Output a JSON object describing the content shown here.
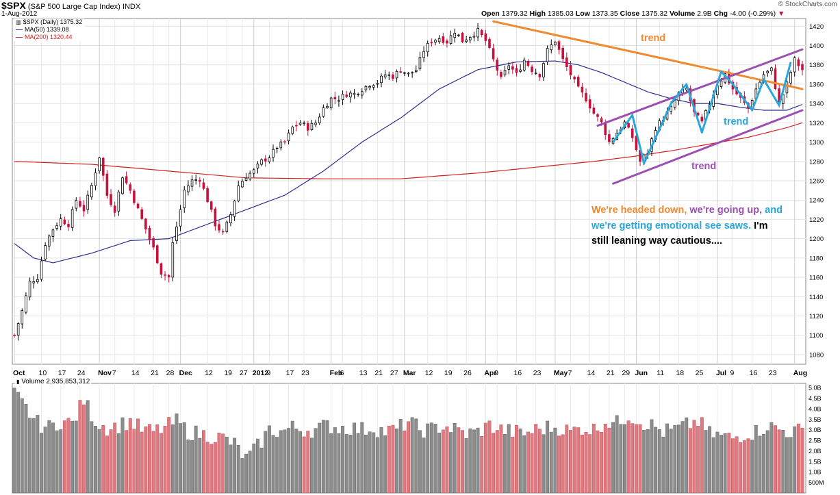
{
  "header": {
    "symbol": "$SPX",
    "name": "(S&P 500 Large Cap Index)",
    "exchange": "INDX",
    "date": "1-Aug-2012",
    "brand": "© StockCharts.com"
  },
  "ohlc": {
    "open_label": "Open",
    "open": "1379.32",
    "high_label": "High",
    "high": "1385.03",
    "low_label": "Low",
    "low": "1373.35",
    "close_label": "Close",
    "close": "1375.32",
    "volume_label": "Volume",
    "volume": "2.9B",
    "chg_label": "Chg",
    "chg": "-4.00 (-0.29%)"
  },
  "legend": {
    "price": "$SPX (Daily) 1375.32",
    "ma50": "MA(50) 1339.08",
    "ma200": "MA(200) 1320.44"
  },
  "volume_legend": "Volume 2,935,853,312",
  "annotation": {
    "part1": "We're headed down,",
    "part2": "we're going up,",
    "part3": "and we're getting emotional see saws.",
    "part4": "I'm still leaning way cautious...."
  },
  "colors": {
    "up": "#000000",
    "down": "#c8103c",
    "ma50": "#2a2f8c",
    "ma200": "#d42020",
    "trend_orange": "#f08a30",
    "trend_purple": "#9b4fb0",
    "trend_blue": "#29a6dc",
    "vol_up": "#8c8c8c",
    "vol_down": "#e07a80"
  },
  "chart_data": {
    "type": "candlestick",
    "title": "$SPX (S&P 500 Large Cap Index) INDX",
    "ylim": [
      1070,
      1428
    ],
    "price_ticks": [
      1080,
      1100,
      1120,
      1140,
      1160,
      1180,
      1200,
      1220,
      1240,
      1260,
      1280,
      1300,
      1320,
      1340,
      1360,
      1380,
      1400,
      1420
    ],
    "x_labels": [
      {
        "label": "Oct",
        "day": 0,
        "bold": true
      },
      {
        "label": "10",
        "day": 7
      },
      {
        "label": "17",
        "day": 12
      },
      {
        "label": "24",
        "day": 17
      },
      {
        "label": "Nov",
        "day": 22,
        "bold": true
      },
      {
        "label": "7",
        "day": 26
      },
      {
        "label": "14",
        "day": 31
      },
      {
        "label": "21",
        "day": 36
      },
      {
        "label": "28",
        "day": 40
      },
      {
        "label": "Dec",
        "day": 43,
        "bold": true
      },
      {
        "label": "12",
        "day": 50
      },
      {
        "label": "19",
        "day": 55
      },
      {
        "label": "27",
        "day": 59
      },
      {
        "label": "2012",
        "day": 62,
        "bold": true
      },
      {
        "label": "9",
        "day": 66
      },
      {
        "label": "17",
        "day": 71
      },
      {
        "label": "23",
        "day": 75
      },
      {
        "label": "Feb",
        "day": 82,
        "bold": true
      },
      {
        "label": "6",
        "day": 85
      },
      {
        "label": "13",
        "day": 90
      },
      {
        "label": "21",
        "day": 94
      },
      {
        "label": "27",
        "day": 98
      },
      {
        "label": "Mar",
        "day": 101,
        "bold": true
      },
      {
        "label": "12",
        "day": 107
      },
      {
        "label": "19",
        "day": 112
      },
      {
        "label": "26",
        "day": 117
      },
      {
        "label": "Apr",
        "day": 122,
        "bold": true
      },
      {
        "label": "9",
        "day": 125
      },
      {
        "label": "16",
        "day": 130
      },
      {
        "label": "23",
        "day": 135
      },
      {
        "label": "May",
        "day": 140,
        "bold": true
      },
      {
        "label": "7",
        "day": 144
      },
      {
        "label": "14",
        "day": 149
      },
      {
        "label": "21",
        "day": 154
      },
      {
        "label": "29",
        "day": 158
      },
      {
        "label": "Jun",
        "day": 161,
        "bold": true
      },
      {
        "label": "11",
        "day": 167
      },
      {
        "label": "18",
        "day": 172
      },
      {
        "label": "25",
        "day": 177
      },
      {
        "label": "Jul",
        "day": 182,
        "bold": true
      },
      {
        "label": "9",
        "day": 186
      },
      {
        "label": "16",
        "day": 191
      },
      {
        "label": "23",
        "day": 196
      },
      {
        "label": "Aug",
        "day": 202,
        "bold": true
      }
    ],
    "anchors": [
      [
        0,
        1100
      ],
      [
        2,
        1125
      ],
      [
        4,
        1155
      ],
      [
        6,
        1160
      ],
      [
        8,
        1195
      ],
      [
        10,
        1210
      ],
      [
        12,
        1220
      ],
      [
        14,
        1215
      ],
      [
        16,
        1240
      ],
      [
        18,
        1230
      ],
      [
        20,
        1255
      ],
      [
        22,
        1285
      ],
      [
        24,
        1245
      ],
      [
        26,
        1230
      ],
      [
        28,
        1265
      ],
      [
        30,
        1250
      ],
      [
        32,
        1230
      ],
      [
        34,
        1210
      ],
      [
        36,
        1190
      ],
      [
        38,
        1165
      ],
      [
        40,
        1160
      ],
      [
        41,
        1195
      ],
      [
        43,
        1230
      ],
      [
        44,
        1250
      ],
      [
        46,
        1260
      ],
      [
        48,
        1262
      ],
      [
        50,
        1240
      ],
      [
        52,
        1215
      ],
      [
        54,
        1205
      ],
      [
        56,
        1225
      ],
      [
        58,
        1255
      ],
      [
        60,
        1265
      ],
      [
        62,
        1270
      ],
      [
        64,
        1280
      ],
      [
        66,
        1285
      ],
      [
        68,
        1295
      ],
      [
        70,
        1300
      ],
      [
        72,
        1315
      ],
      [
        74,
        1320
      ],
      [
        76,
        1315
      ],
      [
        78,
        1320
      ],
      [
        80,
        1335
      ],
      [
        82,
        1345
      ],
      [
        84,
        1345
      ],
      [
        86,
        1350
      ],
      [
        88,
        1350
      ],
      [
        90,
        1355
      ],
      [
        92,
        1360
      ],
      [
        94,
        1362
      ],
      [
        96,
        1370
      ],
      [
        98,
        1368
      ],
      [
        100,
        1375
      ],
      [
        102,
        1370
      ],
      [
        104,
        1375
      ],
      [
        106,
        1395
      ],
      [
        108,
        1405
      ],
      [
        110,
        1408
      ],
      [
        112,
        1404
      ],
      [
        114,
        1415
      ],
      [
        116,
        1405
      ],
      [
        118,
        1410
      ],
      [
        120,
        1415
      ],
      [
        122,
        1405
      ],
      [
        124,
        1385
      ],
      [
        126,
        1365
      ],
      [
        128,
        1380
      ],
      [
        130,
        1370
      ],
      [
        132,
        1385
      ],
      [
        134,
        1375
      ],
      [
        136,
        1370
      ],
      [
        138,
        1395
      ],
      [
        140,
        1405
      ],
      [
        142,
        1385
      ],
      [
        144,
        1370
      ],
      [
        146,
        1355
      ],
      [
        148,
        1345
      ],
      [
        150,
        1330
      ],
      [
        152,
        1320
      ],
      [
        154,
        1300
      ],
      [
        156,
        1310
      ],
      [
        158,
        1320
      ],
      [
        160,
        1305
      ],
      [
        162,
        1280
      ],
      [
        164,
        1290
      ],
      [
        166,
        1315
      ],
      [
        168,
        1325
      ],
      [
        170,
        1335
      ],
      [
        172,
        1350
      ],
      [
        174,
        1355
      ],
      [
        176,
        1330
      ],
      [
        178,
        1320
      ],
      [
        180,
        1340
      ],
      [
        182,
        1360
      ],
      [
        184,
        1370
      ],
      [
        186,
        1355
      ],
      [
        188,
        1345
      ],
      [
        190,
        1335
      ],
      [
        192,
        1355
      ],
      [
        194,
        1370
      ],
      [
        196,
        1375
      ],
      [
        198,
        1340
      ],
      [
        200,
        1360
      ],
      [
        202,
        1385
      ],
      [
        204,
        1375
      ]
    ],
    "ma50_anchors": [
      [
        0,
        1195
      ],
      [
        5,
        1180
      ],
      [
        10,
        1175
      ],
      [
        20,
        1185
      ],
      [
        30,
        1198
      ],
      [
        40,
        1200
      ],
      [
        50,
        1215
      ],
      [
        60,
        1230
      ],
      [
        70,
        1245
      ],
      [
        80,
        1270
      ],
      [
        90,
        1300
      ],
      [
        100,
        1325
      ],
      [
        110,
        1355
      ],
      [
        120,
        1375
      ],
      [
        130,
        1383
      ],
      [
        140,
        1384
      ],
      [
        146,
        1380
      ],
      [
        152,
        1372
      ],
      [
        158,
        1362
      ],
      [
        164,
        1352
      ],
      [
        170,
        1345
      ],
      [
        176,
        1340
      ],
      [
        182,
        1340
      ],
      [
        188,
        1336
      ],
      [
        194,
        1333
      ],
      [
        200,
        1333
      ],
      [
        204,
        1339
      ]
    ],
    "ma200_anchors": [
      [
        0,
        1280
      ],
      [
        20,
        1277
      ],
      [
        40,
        1270
      ],
      [
        60,
        1263
      ],
      [
        80,
        1262
      ],
      [
        100,
        1262
      ],
      [
        120,
        1268
      ],
      [
        140,
        1276
      ],
      [
        150,
        1280
      ],
      [
        160,
        1285
      ],
      [
        170,
        1291
      ],
      [
        180,
        1298
      ],
      [
        190,
        1305
      ],
      [
        200,
        1315
      ],
      [
        204,
        1320
      ]
    ],
    "volume_ticks": [
      "5.0B",
      "4.5B",
      "4.0B",
      "3.5B",
      "3.0B",
      "2.5B",
      "2.0B",
      "1.5B",
      "1.0B",
      "500M"
    ],
    "volume_anchors": [
      [
        0,
        4.7
      ],
      [
        3,
        4.0
      ],
      [
        6,
        3.3
      ],
      [
        9,
        3.1
      ],
      [
        12,
        3.4
      ],
      [
        15,
        3.3
      ],
      [
        18,
        4.4
      ],
      [
        21,
        3.4
      ],
      [
        24,
        3.1
      ],
      [
        27,
        3.2
      ],
      [
        30,
        3.4
      ],
      [
        33,
        3.0
      ],
      [
        36,
        2.9
      ],
      [
        39,
        3.1
      ],
      [
        42,
        3.4
      ],
      [
        45,
        2.9
      ],
      [
        48,
        2.8
      ],
      [
        51,
        2.7
      ],
      [
        54,
        2.6
      ],
      [
        57,
        2.3
      ],
      [
        60,
        1.6
      ],
      [
        63,
        2.2
      ],
      [
        66,
        3.0
      ],
      [
        69,
        2.9
      ],
      [
        72,
        3.1
      ],
      [
        75,
        3.0
      ],
      [
        78,
        3.0
      ],
      [
        81,
        3.2
      ],
      [
        84,
        3.1
      ],
      [
        87,
        3.1
      ],
      [
        90,
        3.0
      ],
      [
        93,
        3.1
      ],
      [
        96,
        2.9
      ],
      [
        99,
        3.0
      ],
      [
        102,
        3.4
      ],
      [
        105,
        3.0
      ],
      [
        108,
        3.0
      ],
      [
        111,
        3.2
      ],
      [
        114,
        3.0
      ],
      [
        117,
        2.8
      ],
      [
        120,
        2.9
      ],
      [
        123,
        3.2
      ],
      [
        126,
        3.0
      ],
      [
        129,
        2.9
      ],
      [
        132,
        2.8
      ],
      [
        135,
        3.0
      ],
      [
        138,
        3.1
      ],
      [
        141,
        3.1
      ],
      [
        144,
        2.9
      ],
      [
        147,
        3.1
      ],
      [
        150,
        3.0
      ],
      [
        153,
        3.4
      ],
      [
        156,
        3.3
      ],
      [
        159,
        3.7
      ],
      [
        162,
        3.4
      ],
      [
        165,
        3.2
      ],
      [
        168,
        2.9
      ],
      [
        171,
        3.0
      ],
      [
        174,
        3.2
      ],
      [
        177,
        3.4
      ],
      [
        180,
        2.8
      ],
      [
        183,
        2.7
      ],
      [
        186,
        2.6
      ],
      [
        189,
        2.8
      ],
      [
        192,
        2.9
      ],
      [
        195,
        3.2
      ],
      [
        198,
        3.0
      ],
      [
        201,
        2.9
      ],
      [
        204,
        2.95
      ]
    ],
    "trendlines": [
      {
        "name": "orange",
        "label": "trend",
        "from": [
          124,
          1425
        ],
        "to": [
          204,
          1355
        ]
      },
      {
        "name": "purple-top",
        "from": [
          151,
          1317
        ],
        "to": [
          204,
          1396
        ]
      },
      {
        "name": "purple-bottom",
        "from": [
          155,
          1257
        ],
        "to": [
          204,
          1333
        ]
      },
      {
        "name": "purple-label",
        "label": "trend"
      },
      {
        "name": "blue",
        "label": "trend"
      }
    ],
    "blue_zigzag": [
      [
        155,
        1300
      ],
      [
        160,
        1328
      ],
      [
        163,
        1278
      ],
      [
        170,
        1340
      ],
      [
        174,
        1360
      ],
      [
        178,
        1310
      ],
      [
        183,
        1373
      ],
      [
        186,
        1360
      ],
      [
        191,
        1333
      ],
      [
        194,
        1365
      ],
      [
        198,
        1338
      ],
      [
        201,
        1383
      ]
    ]
  }
}
